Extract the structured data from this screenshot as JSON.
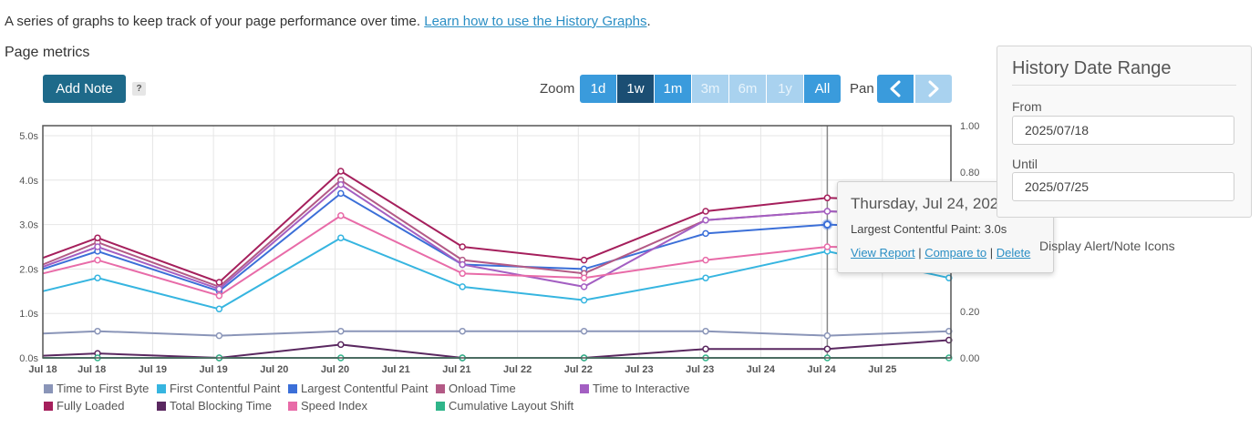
{
  "intro": {
    "text": "A series of graphs to keep track of your page performance over time. ",
    "link": "Learn how to use the History Graphs",
    "end": "."
  },
  "section_title": "Page metrics",
  "toolbar": {
    "add_note": "Add Note",
    "help": "?",
    "zoom_label": "Zoom",
    "zoom_options": [
      "1d",
      "1w",
      "1m",
      "3m",
      "6m",
      "1y",
      "All"
    ],
    "zoom_active": "1w",
    "zoom_disabled": [
      "3m",
      "6m",
      "1y"
    ],
    "pan_label": "Pan"
  },
  "chart_data": {
    "type": "line",
    "x": [
      "2025-07-17",
      "2025-07-18",
      "2025-07-19",
      "2025-07-20",
      "2025-07-21",
      "2025-07-22",
      "2025-07-23",
      "2025-07-24",
      "2025-07-25"
    ],
    "x_tick_labels": [
      "Jul 18",
      "Jul 18",
      "Jul 19",
      "Jul 19",
      "Jul 20",
      "Jul 20",
      "Jul 21",
      "Jul 21",
      "Jul 22",
      "Jul 22",
      "Jul 23",
      "Jul 23",
      "Jul 24",
      "Jul 24",
      "Jul 25"
    ],
    "y_left_ticks": [
      "0.0s",
      "1.0s",
      "2.0s",
      "3.0s",
      "4.0s",
      "5.0s"
    ],
    "y_left_range": [
      0,
      5
    ],
    "y_right_ticks": [
      "0.00",
      "0.20",
      "0.40",
      "0.60",
      "0.80",
      "1.00"
    ],
    "y_right_range": [
      0,
      1
    ],
    "grid": true,
    "crosshair_x": "2025-07-24",
    "series": [
      {
        "name": "Time to First Byte",
        "color": "#8a95b8",
        "axis": "left",
        "values": [
          0.55,
          0.6,
          0.5,
          0.6,
          0.6,
          0.6,
          0.6,
          0.5,
          0.6
        ]
      },
      {
        "name": "First Contentful Paint",
        "color": "#36b5e0",
        "axis": "left",
        "values": [
          1.5,
          1.8,
          1.1,
          2.7,
          1.6,
          1.3,
          1.8,
          2.4,
          1.8
        ]
      },
      {
        "name": "Largest Contentful Paint",
        "color": "#3b6fd8",
        "axis": "left",
        "values": [
          2.0,
          2.4,
          1.5,
          3.7,
          2.1,
          2.0,
          2.8,
          3.0,
          2.9
        ]
      },
      {
        "name": "Onload Time",
        "color": "#b35a86",
        "axis": "left",
        "values": [
          2.1,
          2.6,
          1.6,
          4.0,
          2.2,
          1.9,
          3.1,
          3.3,
          3.2
        ]
      },
      {
        "name": "Time to Interactive",
        "color": "#a35fc2",
        "axis": "left",
        "values": [
          2.05,
          2.5,
          1.55,
          3.9,
          2.1,
          1.6,
          3.1,
          3.3,
          3.2
        ]
      },
      {
        "name": "Fully Loaded",
        "color": "#a51f5c",
        "axis": "left",
        "values": [
          2.25,
          2.7,
          1.7,
          4.2,
          2.5,
          2.2,
          3.3,
          3.6,
          3.5
        ]
      },
      {
        "name": "Total Blocking Time",
        "color": "#5a2860",
        "axis": "left",
        "values": [
          0.05,
          0.1,
          0.0,
          0.3,
          0.0,
          0.0,
          0.2,
          0.2,
          0.4
        ]
      },
      {
        "name": "Speed Index",
        "color": "#e86ba8",
        "axis": "left",
        "values": [
          1.9,
          2.2,
          1.4,
          3.2,
          1.9,
          1.8,
          2.2,
          2.5,
          2.45
        ]
      },
      {
        "name": "Cumulative Layout Shift",
        "color": "#2fb58a",
        "axis": "right",
        "values": [
          0.0,
          0.0,
          0.0,
          0.0,
          0.0,
          0.0,
          0.0,
          0.0,
          0.0
        ]
      }
    ]
  },
  "tooltip": {
    "date": "Thursday, Jul 24, 2025 10:26",
    "metric": "Largest Contentful Paint: 3.0s",
    "links": [
      "View Report",
      "Compare to",
      "Delete"
    ],
    "separator": " | "
  },
  "panel": {
    "title": "History Date Range",
    "from_label": "From",
    "from_value": "2025/07/18",
    "until_label": "Until",
    "until_value": "2025/07/25",
    "display_option": "Display Alert/Note Icons"
  },
  "colors": {
    "primary": "#3a9bdc",
    "active": "#1b4e73",
    "disabled": "#a9d2ef",
    "add_note": "#1e6a8a",
    "link": "#2a8ec4"
  }
}
